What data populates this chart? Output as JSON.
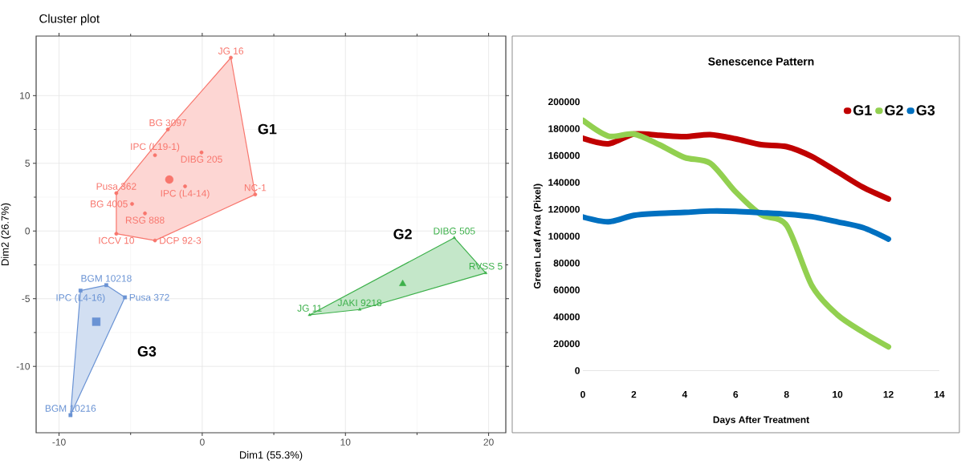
{
  "chart_data": [
    {
      "type": "scatter",
      "title": "Cluster plot",
      "xlabel": "Dim1 (55.3%)",
      "ylabel": "Dim2 (26.7%)",
      "xlim": [
        -11.6,
        21.2
      ],
      "ylim": [
        -14.9,
        14.4
      ],
      "xticks": [
        -10,
        0,
        10,
        20
      ],
      "yticks": [
        -10,
        -5,
        0,
        5,
        10
      ],
      "grid": true,
      "series": [
        {
          "type": "area",
          "color": "#f8766d",
          "x": [
            2.0,
            3.7,
            -3.3,
            -6.0,
            -6.0,
            -2.4,
            2.0
          ],
          "values": [
            12.8,
            2.7,
            -0.7,
            -0.2,
            2.8,
            7.5,
            12.8
          ]
        },
        {
          "type": "area",
          "color": "#3cb04a",
          "x": [
            7.5,
            17.6,
            19.8,
            11.0,
            7.5
          ],
          "values": [
            -6.2,
            -0.5,
            -3.1,
            -5.8,
            -6.2
          ]
        },
        {
          "type": "area",
          "color": "#6a93d4",
          "x": [
            -8.5,
            -6.7,
            -5.4,
            -9.2,
            -8.5
          ],
          "values": [
            -4.4,
            -4.0,
            -4.9,
            -13.6,
            -4.4
          ]
        },
        {
          "color": "#f8766d",
          "marker": "circle",
          "x": [
            2.0,
            -2.4,
            -3.3,
            -0.05,
            -1.2,
            3.7,
            -6.0,
            -4.9,
            -4.0,
            -6.0,
            -3.3
          ],
          "values": [
            12.8,
            7.5,
            5.6,
            5.8,
            3.3,
            2.7,
            2.8,
            2.0,
            1.3,
            -0.2,
            -0.7
          ],
          "value_labels": [
            "JG 16",
            "BG 3097",
            "IPC (L19-1)",
            "DIBG 205",
            "IPC (L4-14)",
            "NC-1",
            "Pusa 362",
            "BG 4005",
            "RSG 888",
            "ICCV 10",
            "DCP 92-3"
          ]
        },
        {
          "color": "#3cb04a",
          "marker": "triangle",
          "x": [
            7.5,
            11.0,
            17.6,
            19.8
          ],
          "values": [
            -6.2,
            -5.8,
            -0.5,
            -3.1
          ],
          "value_labels": [
            "JG 11",
            "JAKI 9218",
            "DIBG 505",
            "RVSS 5"
          ]
        },
        {
          "color": "#6a93d4",
          "marker": "square",
          "x": [
            -8.5,
            -6.7,
            -5.4,
            -9.2
          ],
          "values": [
            -4.4,
            -4.0,
            -4.9,
            -13.6
          ],
          "value_labels": [
            "IPC (L4-16)",
            "BGM 10218",
            "Pusa 372",
            "BGM 10216"
          ]
        },
        {
          "color": "#f8766d",
          "marker": "circle",
          "x": [
            -2.3
          ],
          "values": [
            3.8
          ]
        },
        {
          "color": "#3cb04a",
          "marker": "triangle",
          "x": [
            14.0
          ],
          "values": [
            -3.9
          ]
        },
        {
          "color": "#6a93d4",
          "marker": "square",
          "x": [
            -7.4
          ],
          "values": [
            -6.7
          ]
        }
      ],
      "annotations": [
        "G1",
        "G2",
        "G3"
      ]
    },
    {
      "type": "line",
      "title": "Senescence Pattern",
      "xlabel": "Days After Treatment",
      "ylabel": "Green Leaf Area (Pixel)",
      "x": [
        0,
        1,
        2,
        3,
        4,
        5,
        6,
        7,
        8,
        9,
        10,
        11,
        12
      ],
      "xlim": [
        0,
        14
      ],
      "ylim": [
        0,
        200000
      ],
      "xticks": [
        0,
        2,
        4,
        6,
        8,
        10,
        12,
        14
      ],
      "yticks": [
        0,
        20000,
        40000,
        60000,
        80000,
        100000,
        120000,
        140000,
        160000,
        180000,
        200000
      ],
      "legend": "top right",
      "series": [
        {
          "name": "G1",
          "color": "#c00000",
          "values": [
            172800,
            168700,
            176000,
            175100,
            174000,
            175600,
            172400,
            168100,
            166600,
            159200,
            147900,
            136400,
            127700
          ]
        },
        {
          "name": "G2",
          "color": "#92d050",
          "values": [
            186200,
            174500,
            176000,
            168100,
            158500,
            154300,
            133000,
            116000,
            108000,
            63000,
            41500,
            28700,
            17700
          ]
        },
        {
          "name": "G3",
          "color": "#0070c0",
          "values": [
            114300,
            110700,
            115500,
            117000,
            117700,
            118700,
            118500,
            117500,
            116400,
            114500,
            110700,
            106400,
            97900
          ]
        }
      ]
    }
  ]
}
